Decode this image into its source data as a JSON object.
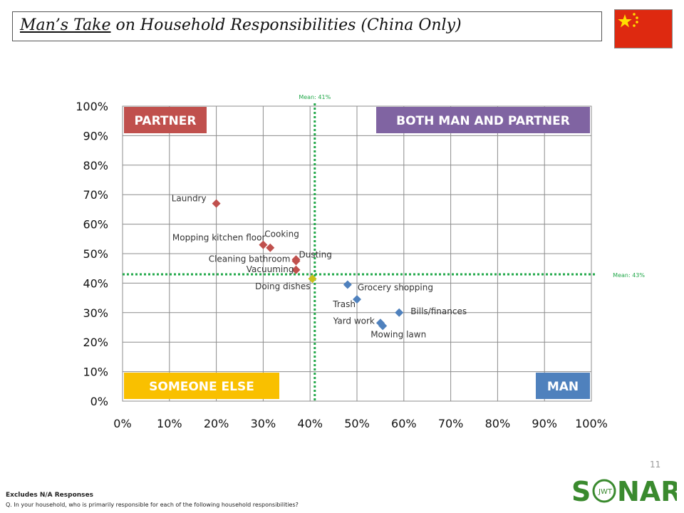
{
  "header": {
    "title_underlined": "Man’s Take",
    "title_rest": " on Household Responsibilities (China Only)",
    "flag_icon": "china-flag-icon"
  },
  "chart_data": {
    "type": "scatter",
    "xlim": [
      0,
      100
    ],
    "ylim": [
      0,
      100
    ],
    "x_ticks": [
      "0%",
      "10%",
      "20%",
      "30%",
      "40%",
      "50%",
      "60%",
      "70%",
      "80%",
      "90%",
      "100%"
    ],
    "y_ticks": [
      "0%",
      "10%",
      "20%",
      "30%",
      "40%",
      "50%",
      "60%",
      "70%",
      "80%",
      "90%",
      "100%"
    ],
    "grid": true,
    "mean_x": {
      "value": 41,
      "label": "Mean: 41%"
    },
    "mean_y": {
      "value": 43,
      "label": "Mean: 43%"
    },
    "quadrants": {
      "top_left": {
        "label": "PARTNER",
        "color": "#c0504d"
      },
      "top_right": {
        "label": "BOTH MAN AND PARTNER",
        "color": "#8064a2"
      },
      "bottom_left": {
        "label": "SOMEONE ELSE",
        "color": "#f9c000"
      },
      "bottom_right": {
        "label": "MAN",
        "color": "#4f81bd"
      }
    },
    "points": [
      {
        "label": "Laundry",
        "x": 20,
        "y": 67,
        "group": "partner"
      },
      {
        "label": "Mopping kitchen floor",
        "x": 30,
        "y": 53,
        "group": "partner"
      },
      {
        "label": "Cooking",
        "x": 31.5,
        "y": 52,
        "group": "partner"
      },
      {
        "label": "Dusting",
        "x": 37,
        "y": 48,
        "group": "partner"
      },
      {
        "label": "Cleaning bathroom",
        "x": 37,
        "y": 47.5,
        "group": "partner"
      },
      {
        "label": "Vacuuming",
        "x": 37,
        "y": 44.5,
        "group": "partner"
      },
      {
        "label": "Doing dishes",
        "x": 40.5,
        "y": 41.5,
        "group": "someone"
      },
      {
        "label": "Grocery shopping",
        "x": 48,
        "y": 39.5,
        "group": "man"
      },
      {
        "label": "Trash",
        "x": 50,
        "y": 34.5,
        "group": "man"
      },
      {
        "label": "Bills/finances",
        "x": 59,
        "y": 30,
        "group": "man"
      },
      {
        "label": "Yard work",
        "x": 55,
        "y": 26.5,
        "group": "man"
      },
      {
        "label": "Mowing lawn",
        "x": 55.5,
        "y": 25.5,
        "group": "man"
      }
    ]
  },
  "footer": {
    "page_number": "11",
    "note1": "Excludes N/A Responses",
    "note2": "Q. In your household, who is primarily responsible for each of the following household responsibilities?",
    "logo_text": "S NAR",
    "logo_inner": "JWT"
  }
}
